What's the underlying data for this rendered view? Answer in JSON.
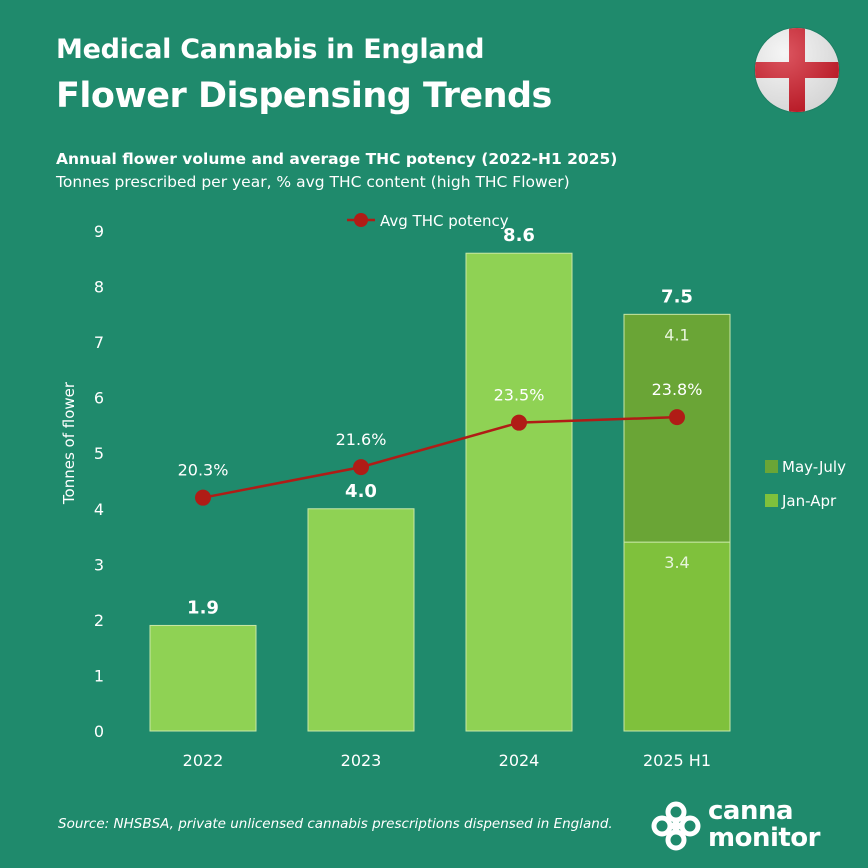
{
  "header": {
    "title_line1": "Medical Cannabis in England",
    "title_line2": "Flower Dispensing Trends",
    "subtitle_bold": "Annual flower volume and average THC potency (2022-H1 2025)",
    "subtitle": "Tonnes prescribed per year, % avg THC content (high THC Flower)"
  },
  "flag": {
    "icon": "england-flag-icon",
    "colors": {
      "white": "#f2f2f2",
      "red": "#d01c2a"
    }
  },
  "chart_data": {
    "type": "bar",
    "categories": [
      "2022",
      "2023",
      "2024",
      "2025 H1"
    ],
    "ylabel": "Tonnes of flower",
    "ylim": [
      0,
      9
    ],
    "yticks": [
      0,
      1,
      2,
      3,
      4,
      5,
      6,
      7,
      8,
      9
    ],
    "grid": false,
    "bars": [
      {
        "category": "2022",
        "value": 1.9,
        "label": "1.9"
      },
      {
        "category": "2023",
        "value": 4.0,
        "label": "4.0"
      },
      {
        "category": "2024",
        "value": 8.6,
        "label": "8.6"
      },
      {
        "category": "2025 H1",
        "value": 7.5,
        "label": "7.5",
        "stacked": [
          {
            "name": "Jan-Apr",
            "value": 3.4,
            "label": "3.4"
          },
          {
            "name": "May-July",
            "value": 4.1,
            "label": "4.1"
          }
        ]
      }
    ],
    "line_series": {
      "name": "Avg THC potency",
      "values": [
        20.3,
        21.6,
        23.5,
        23.8
      ],
      "labels": [
        "20.3%",
        "21.6%",
        "23.5%",
        "23.8%"
      ],
      "plotted_on_left_axis_at": [
        4.2,
        4.75,
        5.55,
        5.65
      ]
    },
    "legend": {
      "line": {
        "label": "Avg THC potency",
        "placement": "top-center"
      },
      "stack": [
        {
          "label": "May-July",
          "color": "#6aa536"
        },
        {
          "label": "Jan-Apr",
          "color": "#7fc13c"
        }
      ],
      "stack_placement": "right"
    },
    "colors": {
      "bar": "#8fd254",
      "jan_apr": "#7fc13c",
      "may_july": "#6aa536",
      "line": "#b01c16",
      "bar_edge": "#c8e8a8"
    }
  },
  "footer": {
    "source": "Source: NHSBSA, private unlicensed cannabis prescriptions dispensed in England.",
    "logo_line1": "canna",
    "logo_line2": "monitor",
    "logo_icon": "canna-monitor-logo-icon"
  }
}
